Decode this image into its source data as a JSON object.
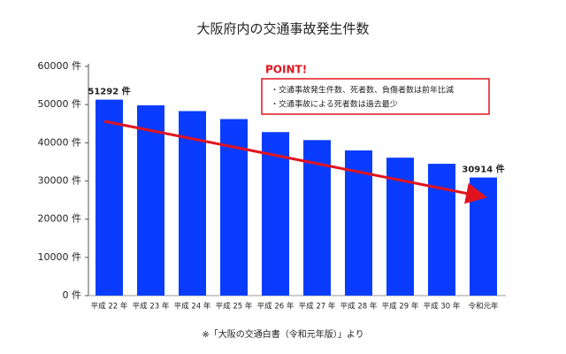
{
  "chart_data": {
    "type": "bar",
    "title": "大阪府内の交通事故発生件数",
    "categories": [
      "平成 22 年",
      "平成 23 年",
      "平成 24 年",
      "平成 25 年",
      "平成 26 年",
      "平成 27 年",
      "平成 28 年",
      "平成 29 年",
      "平成 30 年",
      "令和元年"
    ],
    "values": [
      51292,
      49800,
      48300,
      46200,
      42800,
      40700,
      38000,
      36100,
      34500,
      30914
    ],
    "value_labels": [
      "51292 件",
      null,
      null,
      null,
      null,
      null,
      null,
      null,
      null,
      "30914 件"
    ],
    "color": "#0a3cff",
    "ylim": [
      0,
      60000
    ],
    "yticks": [
      {
        "value": 0,
        "label": "0 件"
      },
      {
        "value": 10000,
        "label": "10000 件"
      },
      {
        "value": 20000,
        "label": "20000 件"
      },
      {
        "value": 30000,
        "label": "30000 件"
      },
      {
        "value": 40000,
        "label": "40000 件"
      },
      {
        "value": 50000,
        "label": "50000 件"
      },
      {
        "value": 60000,
        "label": "60000 件"
      }
    ],
    "annotation": {
      "title": "POINT!",
      "lines": [
        "・交通事故発生件数、死者数、負傷者数は前年比減",
        "・交通事故による死者数は過去最少"
      ]
    },
    "note": "※「大阪の交通白書（令和元年版）」より"
  }
}
